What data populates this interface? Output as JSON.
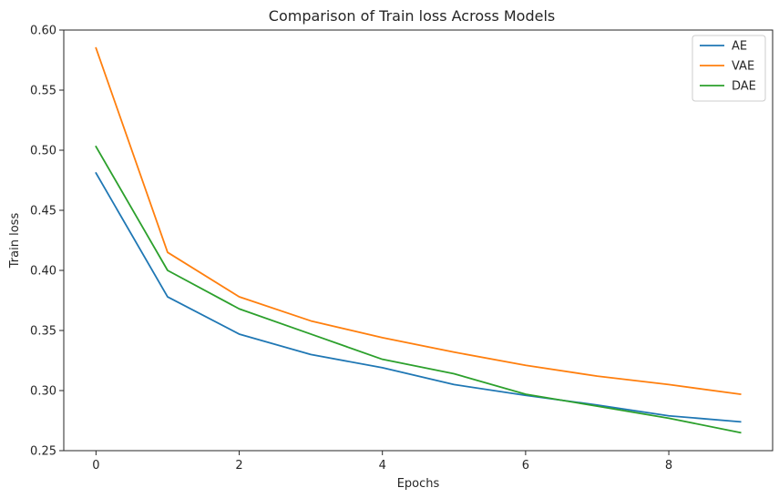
{
  "chart_data": {
    "type": "line",
    "title": "Comparison of Train loss Across Models",
    "xlabel": "Epochs",
    "ylabel": "Train loss",
    "x": [
      0,
      1,
      2,
      3,
      4,
      5,
      6,
      7,
      8,
      9
    ],
    "xlim": [
      -0.45,
      9.45
    ],
    "ylim": [
      0.25,
      0.6
    ],
    "xticks": [
      0,
      2,
      4,
      6,
      8
    ],
    "yticks": [
      0.25,
      0.3,
      0.35,
      0.4,
      0.45,
      0.5,
      0.55,
      0.6
    ],
    "ytick_labels": [
      "0.25",
      "0.30",
      "0.35",
      "0.40",
      "0.45",
      "0.50",
      "0.55",
      "0.60"
    ],
    "grid": false,
    "legend": "top-right",
    "series": [
      {
        "name": "AE",
        "color": "#1f77b4",
        "values": [
          0.481,
          0.378,
          0.347,
          0.33,
          0.319,
          0.305,
          0.296,
          0.288,
          0.279,
          0.274
        ]
      },
      {
        "name": "VAE",
        "color": "#ff7f0e",
        "values": [
          0.585,
          0.415,
          0.378,
          0.358,
          0.344,
          0.332,
          0.321,
          0.312,
          0.305,
          0.297
        ]
      },
      {
        "name": "DAE",
        "color": "#2ca02c",
        "values": [
          0.503,
          0.4,
          0.368,
          0.347,
          0.326,
          0.314,
          0.297,
          0.287,
          0.277,
          0.265
        ]
      }
    ]
  }
}
